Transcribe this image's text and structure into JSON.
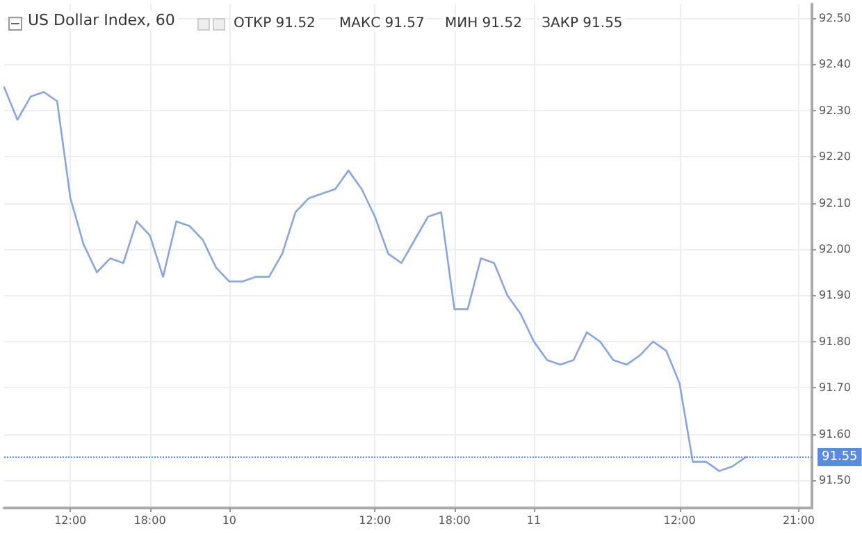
{
  "chart_data": {
    "type": "line",
    "title": "US Dollar Index, 60",
    "annotations": [
      "ОТКР 91.52",
      "МАКС 91.57",
      "МИН 91.52",
      "ЗАКР 91.55"
    ],
    "categories": [
      null,
      null,
      null,
      null,
      null,
      "12:00",
      null,
      null,
      null,
      null,
      null,
      "18:00",
      null,
      null,
      null,
      null,
      null,
      "10",
      null,
      null,
      null,
      null,
      null,
      null,
      null,
      null,
      null,
      null,
      "12:00",
      null,
      null,
      null,
      null,
      null,
      "18:00",
      null,
      null,
      null,
      null,
      null,
      "11",
      null,
      null,
      null,
      null,
      null,
      null,
      null,
      null,
      null,
      null,
      "12:00",
      null,
      null,
      null,
      null,
      null,
      null,
      null,
      null,
      "21:00",
      null
    ],
    "series": [
      {
        "color": "#8aa6d9",
        "values": [
          92.35,
          92.28,
          92.33,
          92.34,
          92.32,
          92.11,
          92.01,
          91.95,
          91.98,
          91.97,
          92.06,
          92.03,
          91.94,
          92.06,
          92.05,
          92.02,
          91.96,
          91.93,
          91.93,
          91.94,
          91.94,
          91.99,
          92.08,
          92.11,
          92.12,
          92.13,
          92.17,
          92.13,
          92.07,
          91.99,
          91.97,
          92.02,
          92.07,
          92.08,
          91.87,
          91.87,
          91.98,
          91.97,
          91.9,
          91.86,
          91.8,
          91.76,
          91.75,
          91.76,
          91.82,
          91.8,
          91.76,
          91.75,
          91.77,
          91.8,
          91.78,
          91.71,
          91.54,
          91.54,
          91.52,
          91.53,
          91.55,
          null,
          null,
          null,
          null,
          null
        ]
      }
    ],
    "ylim": [
      91.44,
      92.53
    ],
    "yticks": [
      {
        "value": 91.5,
        "label": "91.50"
      },
      {
        "value": 91.6,
        "label": "91.60"
      },
      {
        "value": 91.7,
        "label": "91.70"
      },
      {
        "value": 91.8,
        "label": "91.80"
      },
      {
        "value": 91.9,
        "label": "91.90"
      },
      {
        "value": 92,
        "label": "92.00"
      },
      {
        "value": 92.1,
        "label": "92.10"
      },
      {
        "value": 92.2,
        "label": "92.20"
      },
      {
        "value": 92.3,
        "label": "92.30"
      },
      {
        "value": 92.4,
        "label": "92.40"
      },
      {
        "value": 92.5,
        "label": "92.50"
      }
    ],
    "ref_lines": [
      {
        "axis": "y",
        "value": 91.55,
        "label": "91.55",
        "color": "#5b8be0",
        "line_style": "dotted"
      }
    ],
    "grid": true,
    "marker": "none",
    "line_style": "solid"
  }
}
